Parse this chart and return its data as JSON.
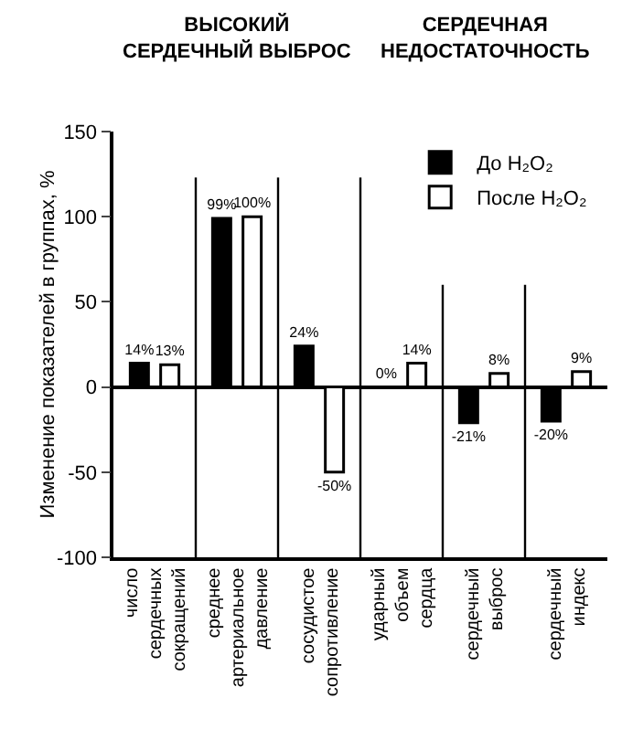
{
  "chart_data": {
    "type": "bar",
    "ylabel": "Изменение показателей в группах, %",
    "annotations": [
      "ВЫСОКИЙ СЕРДЕЧНЫЙ ВЫБРОС",
      "СЕРДЕЧНАЯ НЕДОСТАТОЧНОСТЬ"
    ],
    "categories": [
      "число сердечных сокращений",
      "среднее артериальное давление",
      "сосудистое сопротивление",
      "ударный объем сердца",
      "сердечный выброс",
      "сердечный индекс"
    ],
    "series": [
      {
        "name": "До H₂O₂",
        "color": "#000000",
        "values": [
          14,
          99,
          24,
          0,
          -21,
          -20
        ],
        "value_labels": [
          "14%",
          "99%",
          "24%",
          "0%",
          "-21%",
          "-20%"
        ]
      },
      {
        "name": "После H₂O₂",
        "color": "#ffffff",
        "values": [
          13,
          100,
          -50,
          14,
          8,
          9
        ],
        "value_labels": [
          "13%",
          "100%",
          "-50%",
          "14%",
          "8%",
          "9%"
        ]
      }
    ],
    "ylim": [
      -100,
      150
    ],
    "yticks": [
      -100,
      -50,
      0,
      50,
      100,
      150
    ],
    "legend": "top right"
  }
}
